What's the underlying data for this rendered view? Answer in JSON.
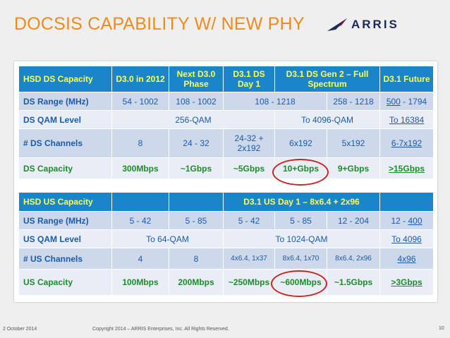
{
  "title": "DOCSIS CAPABILITY W/ NEW PHY",
  "logo_text": "ARRIS",
  "colors": {
    "title": "#f08a1d",
    "header_bg": "#1a86c9",
    "header_text": "#ffff55",
    "value_text": "#1b5ba8",
    "capacity_text": "#1c8c2a",
    "circle": "#cc2222"
  },
  "ds_table": {
    "headers": [
      "HSD DS Capacity",
      "D3.0 in 2012",
      "Next D3.0 Phase",
      "D3.1 DS Day 1",
      "D3.1  DS Gen 2 –  Full Spectrum",
      "D3.1  Future"
    ],
    "range": {
      "label": "DS Range (MHz)",
      "c1": "54 - 1002",
      "c2": "108 - 1002",
      "c3": "108 - 1218",
      "c4": "258 - 1218",
      "future": "500",
      "future_suffix": " - 1794"
    },
    "qam": {
      "label": "DS QAM Level",
      "c1": "256-QAM",
      "c2": "To 4096-QAM",
      "future": "To 16384"
    },
    "channels": {
      "label": "# DS Channels",
      "c1": "8",
      "c2": "24 - 32",
      "c3": "24-32 + 2x192",
      "c4": "6x192",
      "c5": "5x192",
      "future": "6-7x192"
    },
    "capacity": {
      "label": "DS Capacity",
      "c1": "300Mbps",
      "c2": "~1Gbps",
      "c3": "~5Gbps",
      "c4": "10+Gbps",
      "c5": "9+Gbps",
      "future": ">15Gbps"
    }
  },
  "us_table": {
    "headers": [
      "HSD US Capacity",
      "",
      "",
      "D3.1 US Day 1 – 8x6.4 + 2x96",
      ""
    ],
    "range": {
      "label": "US Range (MHz)",
      "c1": "5 - 42",
      "c2": "5 - 85",
      "c3": "5 - 42",
      "c4": "5 - 85",
      "c5": "12 - 204",
      "future_prefix": "12 - ",
      "future": "400"
    },
    "qam": {
      "label": "US QAM Level",
      "c1": "To 64-QAM",
      "c2": "To 1024-QAM",
      "future": "To 4096"
    },
    "channels": {
      "label": "# US Channels",
      "c1": "4",
      "c2": "8",
      "c3": "4x6.4, 1x37",
      "c4": "8x6.4, 1x70",
      "c5": "8x6.4, 2x96",
      "future": "4x96"
    },
    "capacity": {
      "label": "US Capacity",
      "c1": "100Mbps",
      "c2": "200Mbps",
      "c3": "~250Mbps",
      "c4": "~600Mbps",
      "c5": "~1.5Gbps",
      "future": ">3Gbps"
    }
  },
  "footer": {
    "date": "2  October 2014",
    "copyright": "Copyright 2014 – ARRIS Enterprises, Inc. All Rights Reserved.",
    "page": "10"
  }
}
